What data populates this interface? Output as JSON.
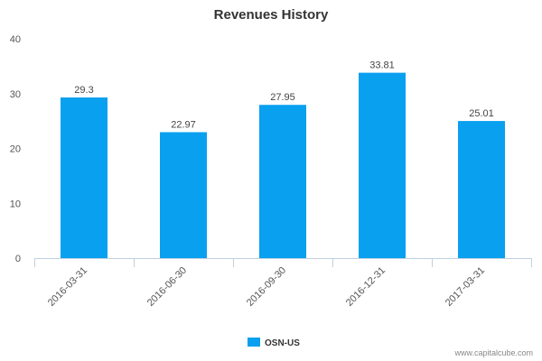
{
  "chart_data": {
    "type": "bar",
    "title": "Revenues History",
    "xlabel": "",
    "ylabel": "",
    "categories": [
      "2016-03-31",
      "2016-06-30",
      "2016-09-30",
      "2016-12-31",
      "2017-03-31"
    ],
    "series": [
      {
        "name": "OSN-US",
        "values": [
          29.3,
          22.97,
          27.95,
          33.81,
          25.01
        ],
        "color": "#0aa0f0"
      }
    ],
    "data_labels": [
      "29.3",
      "22.97",
      "27.95",
      "33.81",
      "25.01"
    ],
    "ylim": [
      0,
      40
    ],
    "yticks": [
      "0",
      "10",
      "20",
      "30",
      "40"
    ],
    "ytick_values": [
      0,
      10,
      20,
      30,
      40
    ],
    "grid": false,
    "legend_position": "bottom-center"
  },
  "credit": "www.capitalcube.com",
  "colors": {
    "axis": "#c0d0e0",
    "bar": "#0aa0f0"
  }
}
